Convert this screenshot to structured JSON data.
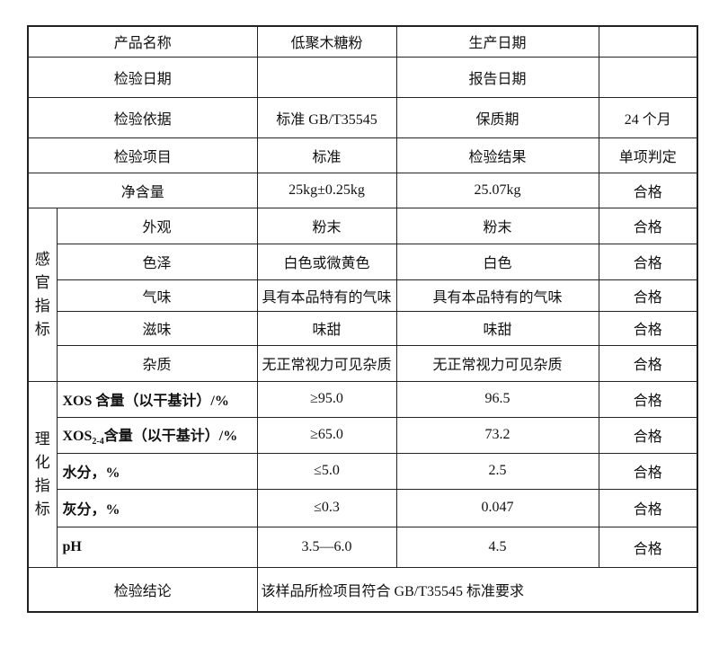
{
  "header": {
    "product_name_label": "产品名称",
    "product_name": "低聚木糖粉",
    "production_date_label": "生产日期",
    "production_date": "",
    "inspection_date_label": "检验日期",
    "inspection_date": "",
    "report_date_label": "报告日期",
    "report_date": "",
    "basis_label": "检验依据",
    "basis": "标准 GB/T35545",
    "shelf_life_label": "保质期",
    "shelf_life": "24 个月"
  },
  "columns": {
    "item": "检验项目",
    "standard": "标准",
    "result": "检验结果",
    "verdict": "单项判定"
  },
  "net_content": {
    "item": "净含量",
    "standard": "25kg±0.25kg",
    "result": "25.07kg",
    "verdict": "合格"
  },
  "sensory": {
    "group_label": "感官指标",
    "rows": [
      {
        "item": "外观",
        "standard": "粉末",
        "result": "粉末",
        "verdict": "合格"
      },
      {
        "item": "色泽",
        "standard": "白色或微黄色",
        "result": "白色",
        "verdict": "合格"
      },
      {
        "item": "气味",
        "standard": "具有本品特有的气味",
        "result": "具有本品特有的气味",
        "verdict": "合格"
      },
      {
        "item": "滋味",
        "standard": "味甜",
        "result": "味甜",
        "verdict": "合格"
      },
      {
        "item": "杂质",
        "standard": "无正常视力可见杂质",
        "result": "无正常视力可见杂质",
        "verdict": "合格"
      }
    ]
  },
  "physchem": {
    "group_label": "理化指标",
    "rows": [
      {
        "item": "XOS 含量（以干基计）/%",
        "standard": "≥95.0",
        "result": "96.5",
        "verdict": "合格"
      },
      {
        "item_pre": "XOS",
        "item_sub": "2-4",
        "item_post": "含量（以干基计）/%",
        "standard": "≥65.0",
        "result": "73.2",
        "verdict": "合格"
      },
      {
        "item": "水分，%",
        "standard": "≤5.0",
        "result": "2.5",
        "verdict": "合格"
      },
      {
        "item": "灰分，%",
        "standard": "≤0.3",
        "result": "0.047",
        "verdict": "合格"
      },
      {
        "item": "pH",
        "standard": "3.5—6.0",
        "result": "4.5",
        "verdict": "合格"
      }
    ]
  },
  "conclusion": {
    "label": "检验结论",
    "text": "该样品所检项目符合 GB/T35545 标准要求"
  }
}
